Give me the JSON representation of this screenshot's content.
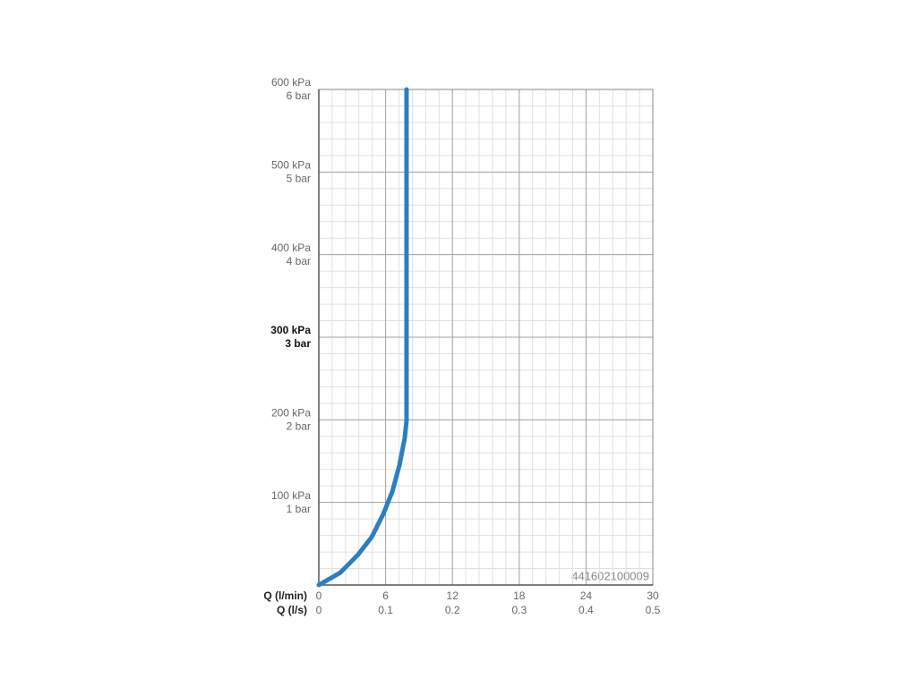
{
  "chart_data": {
    "type": "line",
    "x_label": "Q (l/min)",
    "x2_label": "Q (l/s)",
    "annotation": "441602100009",
    "x": [
      0,
      1.93,
      3.54,
      4.75,
      5.79,
      6.6,
      7.24,
      7.72,
      7.88,
      7.88,
      7.88
    ],
    "series": [
      {
        "color": "#2a7fc1",
        "values": [
          0,
          15,
          37,
          58,
          86,
          113,
          145,
          178,
          199,
          275,
          600
        ]
      }
    ],
    "xlim": [
      0,
      30
    ],
    "xticks": [
      0,
      6,
      12,
      18,
      24,
      30
    ],
    "x2lim": [
      0,
      0.5
    ],
    "x2ticks": [
      0,
      0.1,
      0.2,
      0.3,
      0.4,
      0.5
    ],
    "ylim": [
      0,
      600
    ],
    "yticks": [
      {
        "value": 100,
        "label": "100 kPa"
      },
      {
        "value": 200,
        "label": "200 kPa"
      },
      {
        "value": 300,
        "label": "300 kPa"
      },
      {
        "value": 400,
        "label": "400 kPa"
      },
      {
        "value": 500,
        "label": "500 kPa"
      },
      {
        "value": 600,
        "label": "600 kPa"
      }
    ],
    "yticks_bar": [
      {
        "value": 100,
        "label": "1 bar"
      },
      {
        "value": 200,
        "label": "2 bar"
      },
      {
        "value": 300,
        "label": "3 bar"
      },
      {
        "value": 400,
        "label": "4 bar"
      },
      {
        "value": 500,
        "label": "5 bar"
      },
      {
        "value": 600,
        "label": "6 bar"
      }
    ],
    "bold_ytick": 300,
    "grid": true,
    "minor_divisions": 5
  }
}
